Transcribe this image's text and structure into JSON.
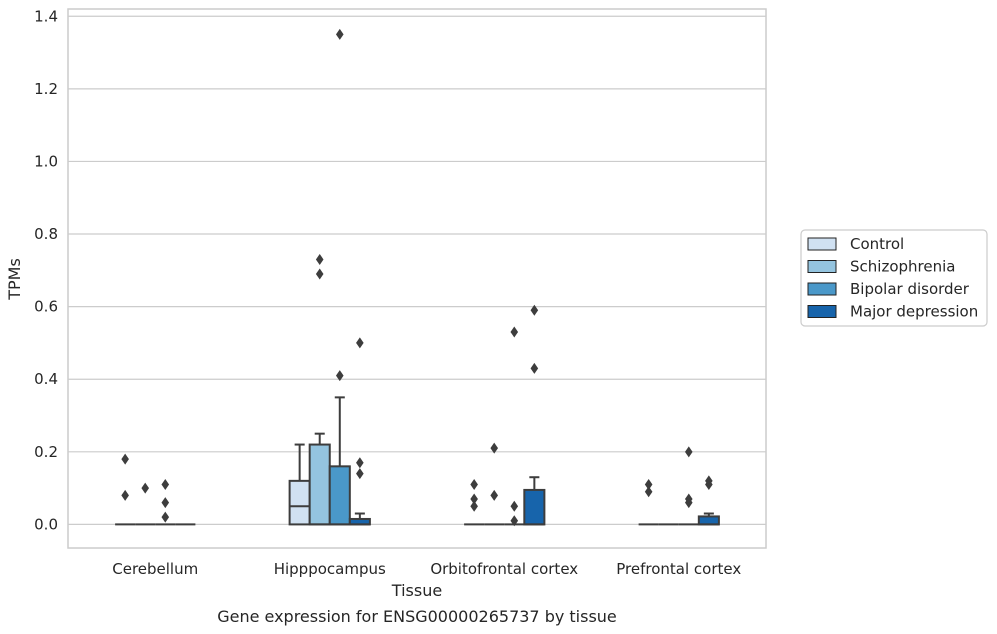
{
  "chart_data": {
    "type": "box",
    "caption": "Gene expression for ENSG00000265737 by tissue",
    "xlabel": "Tissue",
    "ylabel": "TPMs",
    "ylim": [
      -0.065,
      1.42
    ],
    "yticks": [
      0.0,
      0.2,
      0.4,
      0.6,
      0.8,
      1.0,
      1.2,
      1.4
    ],
    "ytick_labels": [
      "0.0",
      "0.2",
      "0.4",
      "0.6",
      "0.8",
      "1.0",
      "1.2",
      "1.4"
    ],
    "grid": "horizontal",
    "legend_placement": "right",
    "categories": [
      "Cerebellum",
      "Hipppocampus",
      "Orbitofrontal cortex",
      "Prefrontal cortex"
    ],
    "series": [
      {
        "name": "Control",
        "color": "#d0e1f2",
        "boxes": [
          {
            "q1": 0,
            "median": 0,
            "q3": 0,
            "whisker_low": 0,
            "whisker_high": 0,
            "outliers": [
              0.18,
              0.08
            ]
          },
          {
            "q1": 0,
            "median": 0.05,
            "q3": 0.12,
            "whisker_low": 0,
            "whisker_high": 0.22,
            "outliers": []
          },
          {
            "q1": 0,
            "median": 0,
            "q3": 0,
            "whisker_low": 0,
            "whisker_high": 0,
            "outliers": [
              0.11,
              0.07,
              0.05
            ]
          },
          {
            "q1": 0,
            "median": 0,
            "q3": 0,
            "whisker_low": 0,
            "whisker_high": 0,
            "outliers": [
              0.11,
              0.09
            ]
          }
        ]
      },
      {
        "name": "Schizophrenia",
        "color": "#94c4df",
        "boxes": [
          {
            "q1": 0,
            "median": 0,
            "q3": 0,
            "whisker_low": 0,
            "whisker_high": 0,
            "outliers": [
              0.1
            ]
          },
          {
            "q1": 0,
            "median": 0,
            "q3": 0.22,
            "whisker_low": 0,
            "whisker_high": 0.25,
            "outliers": [
              0.73,
              0.69
            ]
          },
          {
            "q1": 0,
            "median": 0,
            "q3": 0,
            "whisker_low": 0,
            "whisker_high": 0,
            "outliers": [
              0.21,
              0.08
            ]
          },
          {
            "q1": 0,
            "median": 0,
            "q3": 0,
            "whisker_low": 0,
            "whisker_high": 0,
            "outliers": []
          }
        ]
      },
      {
        "name": "Bipolar disorder",
        "color": "#4a98c9",
        "boxes": [
          {
            "q1": 0,
            "median": 0,
            "q3": 0,
            "whisker_low": 0,
            "whisker_high": 0,
            "outliers": [
              0.11,
              0.06,
              0.02
            ]
          },
          {
            "q1": 0,
            "median": 0,
            "q3": 0.16,
            "whisker_low": 0,
            "whisker_high": 0.35,
            "outliers": [
              1.35,
              0.41
            ]
          },
          {
            "q1": 0,
            "median": 0,
            "q3": 0,
            "whisker_low": 0,
            "whisker_high": 0,
            "outliers": [
              0.53,
              0.05,
              0.01
            ]
          },
          {
            "q1": 0,
            "median": 0,
            "q3": 0,
            "whisker_low": 0,
            "whisker_high": 0,
            "outliers": [
              0.2,
              0.07,
              0.06
            ]
          }
        ]
      },
      {
        "name": "Major depression",
        "color": "#1764ab",
        "boxes": [
          {
            "q1": 0,
            "median": 0,
            "q3": 0,
            "whisker_low": 0,
            "whisker_high": 0,
            "outliers": []
          },
          {
            "q1": 0,
            "median": 0,
            "q3": 0.015,
            "whisker_low": 0,
            "whisker_high": 0.03,
            "outliers": [
              0.5,
              0.17,
              0.14
            ]
          },
          {
            "q1": 0,
            "median": 0,
            "q3": 0.095,
            "whisker_low": 0,
            "whisker_high": 0.13,
            "outliers": [
              0.59,
              0.43
            ]
          },
          {
            "q1": 0,
            "median": 0,
            "q3": 0.022,
            "whisker_low": 0,
            "whisker_high": 0.03,
            "outliers": [
              0.12,
              0.11
            ]
          }
        ]
      }
    ],
    "colors": {
      "box_edge": "#3d3d3d",
      "grid": "#cccccc",
      "spine": "#cccccc",
      "legend_border": "#cccccc"
    }
  }
}
